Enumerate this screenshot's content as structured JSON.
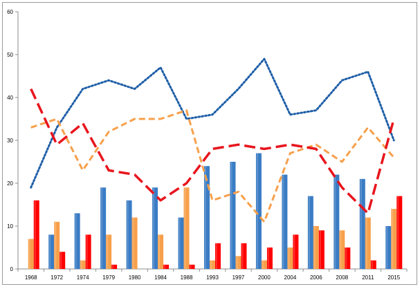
{
  "chart_data": {
    "type": "bar+line",
    "categories": [
      "1968",
      "1972",
      "1974",
      "1979",
      "1980",
      "1984",
      "1988",
      "1993",
      "1997",
      "2000",
      "2004",
      "2006",
      "2008",
      "2011",
      "2015"
    ],
    "ylim": [
      0,
      60
    ],
    "yticks": [
      "0",
      "10",
      "20",
      "30",
      "40",
      "50",
      "60"
    ],
    "grid": false,
    "legend": "none",
    "bars": [
      {
        "color": "#3a7cc4",
        "values": [
          0,
          8,
          13,
          19,
          16,
          19,
          12,
          24,
          25,
          27,
          22,
          17,
          22,
          21,
          10
        ]
      },
      {
        "color": "#f7a04b",
        "values": [
          7,
          11,
          2,
          8,
          12,
          8,
          19,
          2,
          3,
          2,
          5,
          10,
          9,
          12,
          14
        ]
      },
      {
        "color": "#ff0000",
        "values": [
          16,
          4,
          8,
          1,
          0,
          1,
          1,
          6,
          6,
          5,
          8,
          9,
          5,
          2,
          17
        ]
      }
    ],
    "lines": [
      {
        "color": "#1f5fa8",
        "style": "dotted",
        "values": [
          19,
          33,
          42,
          44,
          42,
          47,
          35,
          36,
          42,
          49,
          36,
          37,
          44,
          46,
          30
        ]
      },
      {
        "color": "#f7a04b",
        "style": "dashed",
        "values": [
          33,
          35,
          23,
          32,
          35,
          35,
          37,
          16,
          18,
          11,
          27,
          29,
          25,
          33,
          26
        ]
      },
      {
        "color": "#e8151d",
        "style": "longdash",
        "values": [
          42,
          29,
          34,
          23,
          22,
          16,
          20,
          28,
          29,
          28,
          29,
          28,
          19,
          13,
          35
        ]
      }
    ]
  }
}
